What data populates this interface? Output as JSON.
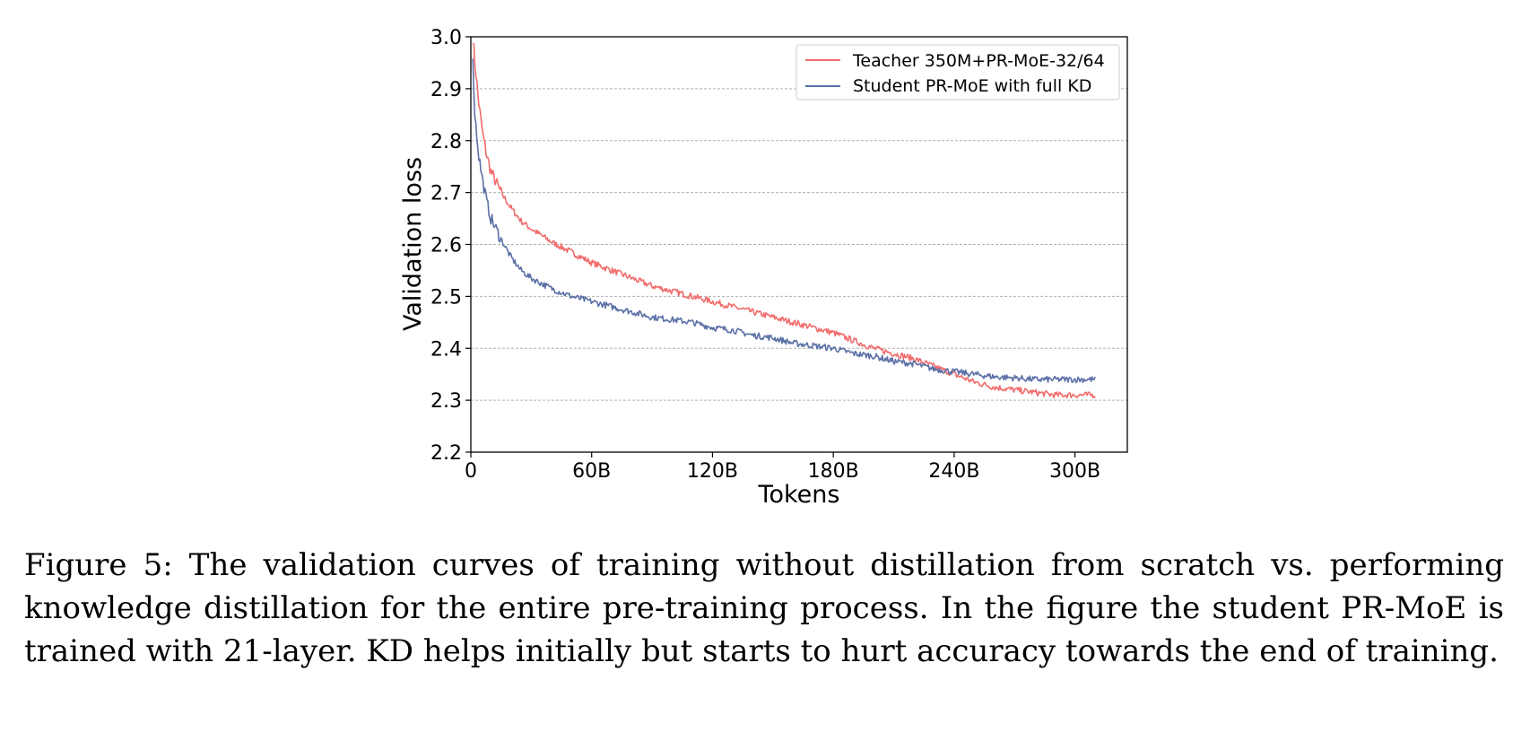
{
  "chart_data": {
    "type": "line",
    "title": "",
    "xlabel": "Tokens",
    "ylabel": "Validation loss",
    "xlim": [
      0,
      326
    ],
    "ylim": [
      2.2,
      3.0
    ],
    "x_tick_values": [
      0,
      60,
      120,
      180,
      240,
      300
    ],
    "x_tick_labels": [
      "0",
      "60B",
      "120B",
      "180B",
      "240B",
      "300B"
    ],
    "y_tick_values": [
      2.2,
      2.3,
      2.4,
      2.5,
      2.6,
      2.7,
      2.8,
      2.9,
      3.0
    ],
    "y_tick_labels": [
      "2.2",
      "2.3",
      "2.4",
      "2.5",
      "2.6",
      "2.7",
      "2.8",
      "2.9",
      "3.0"
    ],
    "grid": "horizontal dashed",
    "legend_position": "top-right",
    "series": [
      {
        "name": "Teacher 350M+PR-MoE-32/64",
        "color": "#f26b6b",
        "x": [
          1,
          2,
          4,
          6,
          8,
          10,
          15,
          20,
          25,
          30,
          40,
          50,
          60,
          70,
          80,
          90,
          100,
          110,
          120,
          130,
          140,
          150,
          160,
          170,
          180,
          190,
          200,
          210,
          220,
          230,
          240,
          250,
          260,
          270,
          280,
          290,
          300,
          305,
          310
        ],
        "y": [
          3.0,
          2.95,
          2.87,
          2.81,
          2.77,
          2.74,
          2.7,
          2.67,
          2.645,
          2.63,
          2.605,
          2.585,
          2.565,
          2.55,
          2.535,
          2.52,
          2.51,
          2.5,
          2.49,
          2.48,
          2.47,
          2.46,
          2.45,
          2.44,
          2.43,
          2.415,
          2.4,
          2.39,
          2.38,
          2.365,
          2.35,
          2.335,
          2.325,
          2.32,
          2.315,
          2.31,
          2.31,
          2.31,
          2.31
        ]
      },
      {
        "name": "Student PR-MoE with full KD",
        "color": "#5b70a6",
        "x": [
          1,
          2,
          4,
          6,
          8,
          10,
          15,
          20,
          25,
          30,
          40,
          50,
          60,
          70,
          80,
          90,
          100,
          110,
          120,
          130,
          140,
          150,
          160,
          170,
          180,
          190,
          200,
          210,
          220,
          230,
          240,
          250,
          260,
          270,
          280,
          290,
          300,
          305,
          310
        ],
        "y": [
          2.95,
          2.85,
          2.77,
          2.72,
          2.68,
          2.65,
          2.61,
          2.575,
          2.55,
          2.535,
          2.515,
          2.5,
          2.49,
          2.48,
          2.47,
          2.46,
          2.455,
          2.45,
          2.44,
          2.435,
          2.425,
          2.42,
          2.41,
          2.405,
          2.4,
          2.39,
          2.385,
          2.375,
          2.37,
          2.36,
          2.355,
          2.35,
          2.345,
          2.343,
          2.34,
          2.34,
          2.34,
          2.34,
          2.34
        ]
      }
    ]
  },
  "caption": "Figure 5: The validation curves of training without distillation from scratch vs. performing knowledge distillation for the entire pre-training process. In the figure the student PR-MoE is trained with 21-layer. KD helps initially but starts to hurt accuracy towards the end of training."
}
